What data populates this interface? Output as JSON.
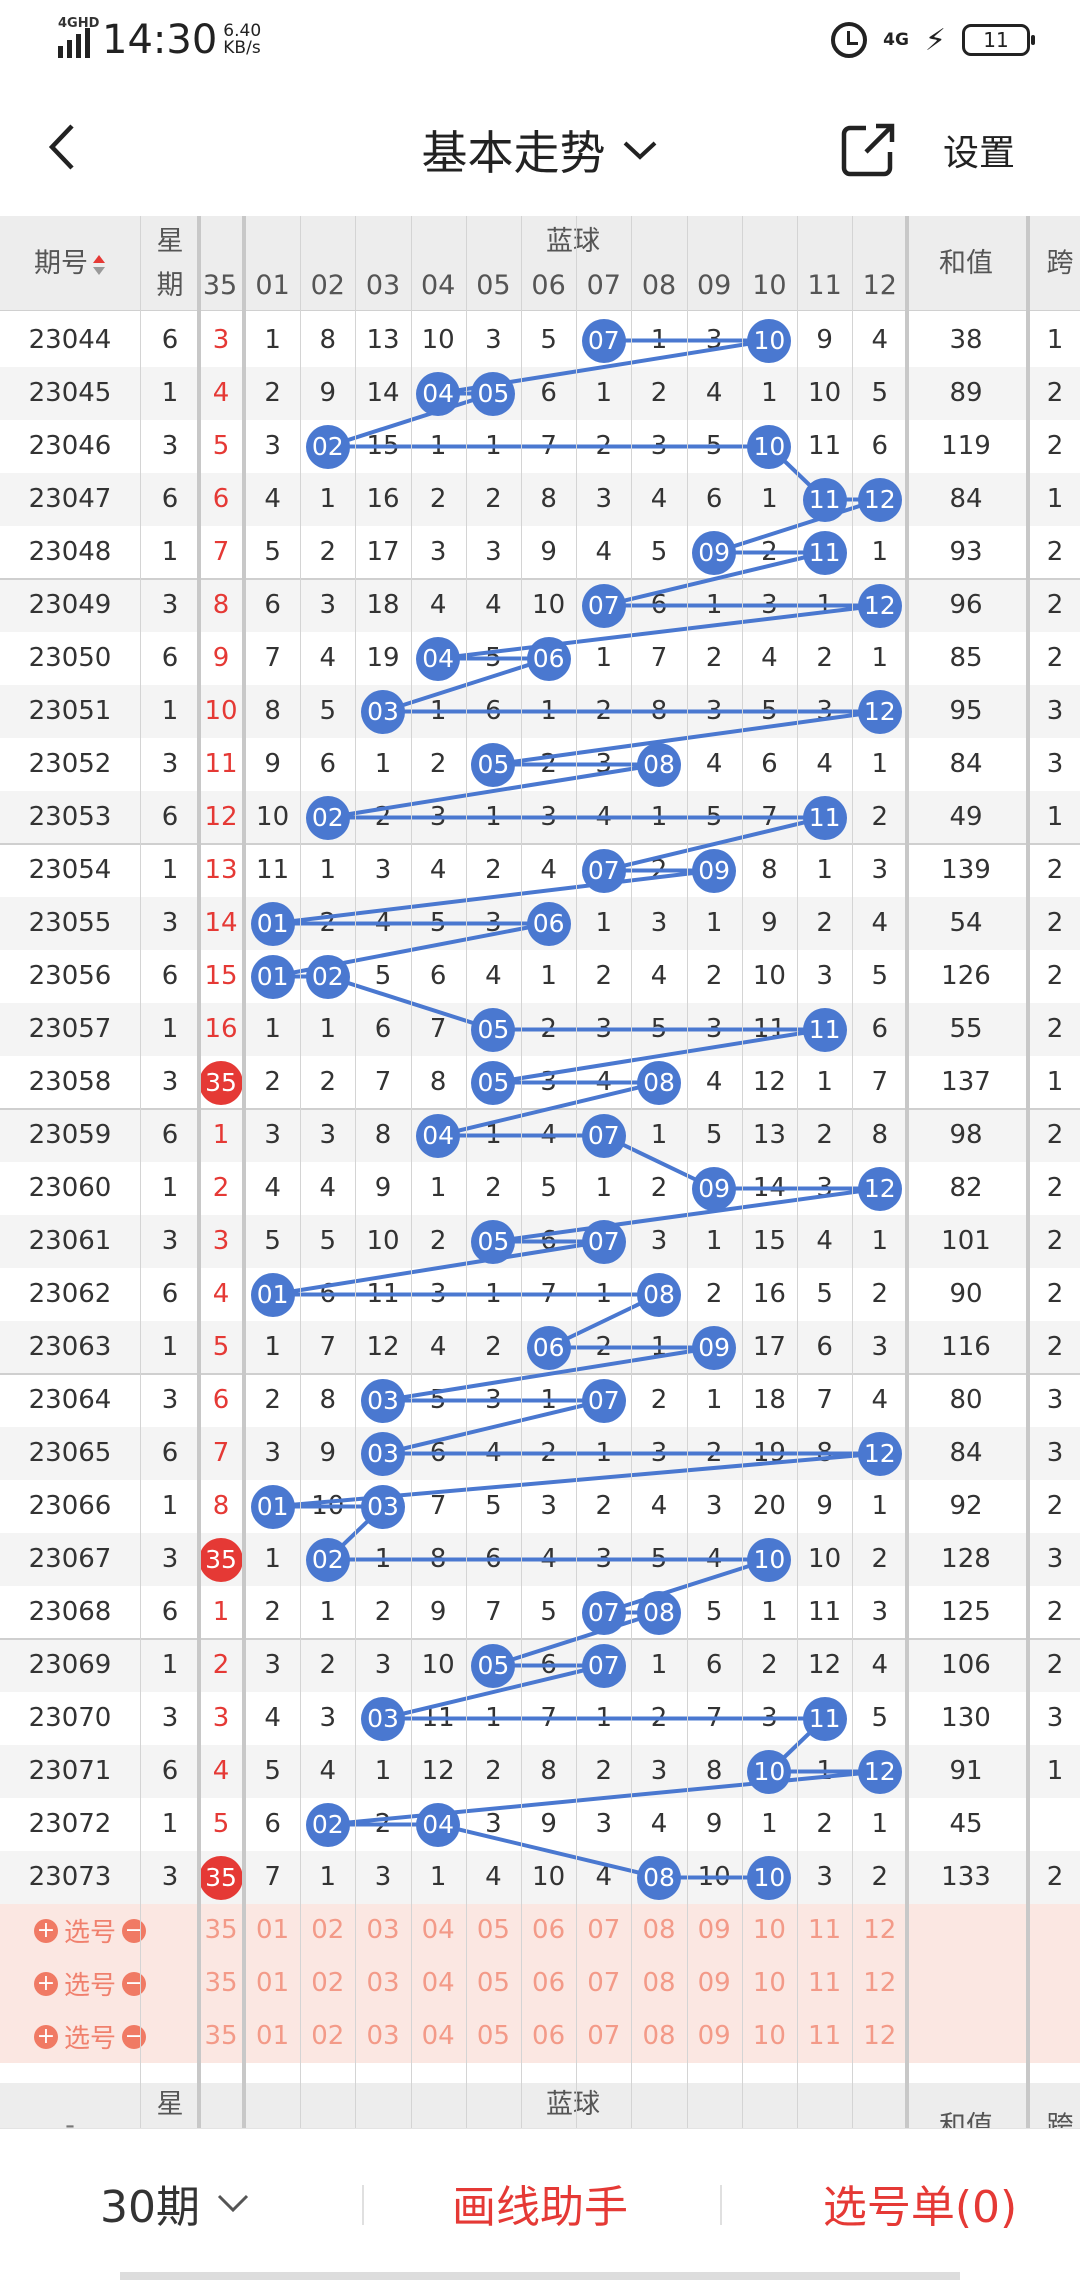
{
  "status": {
    "network_label": "4GHD",
    "time": "14:30",
    "speed_value": "6.40",
    "speed_unit": "KB/s",
    "net_type": "4G",
    "battery": "11"
  },
  "nav": {
    "title": "基本走势",
    "settings": "设置"
  },
  "table_header": {
    "issue": "期号",
    "weekday_top": "星",
    "weekday_bottom": "期",
    "red_col": "35",
    "blue_title": "蓝球",
    "sum": "和值",
    "span": "跨",
    "blue_cols": [
      "01",
      "02",
      "03",
      "04",
      "05",
      "06",
      "07",
      "08",
      "09",
      "10",
      "11",
      "12"
    ]
  },
  "rows": [
    {
      "issue": "23044",
      "wd": "6",
      "red": "3",
      "vals": [
        "1",
        "8",
        "13",
        "10",
        "3",
        "5",
        "07",
        "1",
        "3",
        "10",
        "9",
        "4"
      ],
      "sum": "38",
      "span": "1"
    },
    {
      "issue": "23045",
      "wd": "1",
      "red": "4",
      "vals": [
        "2",
        "9",
        "14",
        "04",
        "05",
        "6",
        "1",
        "2",
        "4",
        "1",
        "10",
        "5"
      ],
      "sum": "89",
      "span": "2"
    },
    {
      "issue": "23046",
      "wd": "3",
      "red": "5",
      "vals": [
        "3",
        "02",
        "15",
        "1",
        "1",
        "7",
        "2",
        "3",
        "5",
        "10",
        "11",
        "6"
      ],
      "sum": "119",
      "span": "2"
    },
    {
      "issue": "23047",
      "wd": "6",
      "red": "6",
      "vals": [
        "4",
        "1",
        "16",
        "2",
        "2",
        "8",
        "3",
        "4",
        "6",
        "1",
        "11",
        "12"
      ],
      "sum": "84",
      "span": "1"
    },
    {
      "issue": "23048",
      "wd": "1",
      "red": "7",
      "vals": [
        "5",
        "2",
        "17",
        "3",
        "3",
        "9",
        "4",
        "5",
        "09",
        "2",
        "11",
        "1"
      ],
      "sum": "93",
      "span": "2"
    },
    {
      "issue": "23049",
      "wd": "3",
      "red": "8",
      "vals": [
        "6",
        "3",
        "18",
        "4",
        "4",
        "10",
        "07",
        "6",
        "1",
        "3",
        "1",
        "12"
      ],
      "sum": "96",
      "span": "2"
    },
    {
      "issue": "23050",
      "wd": "6",
      "red": "9",
      "vals": [
        "7",
        "4",
        "19",
        "04",
        "5",
        "06",
        "1",
        "7",
        "2",
        "4",
        "2",
        "1"
      ],
      "sum": "85",
      "span": "2"
    },
    {
      "issue": "23051",
      "wd": "1",
      "red": "10",
      "vals": [
        "8",
        "5",
        "03",
        "1",
        "6",
        "1",
        "2",
        "8",
        "3",
        "5",
        "3",
        "12"
      ],
      "sum": "95",
      "span": "3"
    },
    {
      "issue": "23052",
      "wd": "3",
      "red": "11",
      "vals": [
        "9",
        "6",
        "1",
        "2",
        "05",
        "2",
        "3",
        "08",
        "4",
        "6",
        "4",
        "1"
      ],
      "sum": "84",
      "span": "3"
    },
    {
      "issue": "23053",
      "wd": "6",
      "red": "12",
      "vals": [
        "10",
        "02",
        "2",
        "3",
        "1",
        "3",
        "4",
        "1",
        "5",
        "7",
        "11",
        "2"
      ],
      "sum": "49",
      "span": "1"
    },
    {
      "issue": "23054",
      "wd": "1",
      "red": "13",
      "vals": [
        "11",
        "1",
        "3",
        "4",
        "2",
        "4",
        "07",
        "2",
        "09",
        "8",
        "1",
        "3"
      ],
      "sum": "139",
      "span": "2"
    },
    {
      "issue": "23055",
      "wd": "3",
      "red": "14",
      "vals": [
        "01",
        "2",
        "4",
        "5",
        "3",
        "06",
        "1",
        "3",
        "1",
        "9",
        "2",
        "4"
      ],
      "sum": "54",
      "span": "2"
    },
    {
      "issue": "23056",
      "wd": "6",
      "red": "15",
      "vals": [
        "01",
        "02",
        "5",
        "6",
        "4",
        "1",
        "2",
        "4",
        "2",
        "10",
        "3",
        "5"
      ],
      "sum": "126",
      "span": "2"
    },
    {
      "issue": "23057",
      "wd": "1",
      "red": "16",
      "vals": [
        "1",
        "1",
        "6",
        "7",
        "05",
        "2",
        "3",
        "5",
        "3",
        "11",
        "11",
        "6"
      ],
      "sum": "55",
      "span": "2"
    },
    {
      "issue": "23058",
      "wd": "3",
      "red": "35",
      "vals": [
        "2",
        "2",
        "7",
        "8",
        "05",
        "3",
        "4",
        "08",
        "4",
        "12",
        "1",
        "7"
      ],
      "sum": "137",
      "span": "1"
    },
    {
      "issue": "23059",
      "wd": "6",
      "red": "1",
      "vals": [
        "3",
        "3",
        "8",
        "04",
        "1",
        "4",
        "07",
        "1",
        "5",
        "13",
        "2",
        "8"
      ],
      "sum": "98",
      "span": "2"
    },
    {
      "issue": "23060",
      "wd": "1",
      "red": "2",
      "vals": [
        "4",
        "4",
        "9",
        "1",
        "2",
        "5",
        "1",
        "2",
        "09",
        "14",
        "3",
        "12"
      ],
      "sum": "82",
      "span": "2"
    },
    {
      "issue": "23061",
      "wd": "3",
      "red": "3",
      "vals": [
        "5",
        "5",
        "10",
        "2",
        "05",
        "6",
        "07",
        "3",
        "1",
        "15",
        "4",
        "1"
      ],
      "sum": "101",
      "span": "2"
    },
    {
      "issue": "23062",
      "wd": "6",
      "red": "4",
      "vals": [
        "01",
        "6",
        "11",
        "3",
        "1",
        "7",
        "1",
        "08",
        "2",
        "16",
        "5",
        "2"
      ],
      "sum": "90",
      "span": "2"
    },
    {
      "issue": "23063",
      "wd": "1",
      "red": "5",
      "vals": [
        "1",
        "7",
        "12",
        "4",
        "2",
        "06",
        "2",
        "1",
        "09",
        "17",
        "6",
        "3"
      ],
      "sum": "116",
      "span": "2"
    },
    {
      "issue": "23064",
      "wd": "3",
      "red": "6",
      "vals": [
        "2",
        "8",
        "03",
        "5",
        "3",
        "1",
        "07",
        "2",
        "1",
        "18",
        "7",
        "4"
      ],
      "sum": "80",
      "span": "3"
    },
    {
      "issue": "23065",
      "wd": "6",
      "red": "7",
      "vals": [
        "3",
        "9",
        "03",
        "6",
        "4",
        "2",
        "1",
        "3",
        "2",
        "19",
        "8",
        "12"
      ],
      "sum": "84",
      "span": "3"
    },
    {
      "issue": "23066",
      "wd": "1",
      "red": "8",
      "vals": [
        "01",
        "10",
        "03",
        "7",
        "5",
        "3",
        "2",
        "4",
        "3",
        "20",
        "9",
        "1"
      ],
      "sum": "92",
      "span": "2"
    },
    {
      "issue": "23067",
      "wd": "3",
      "red": "35",
      "vals": [
        "1",
        "02",
        "1",
        "8",
        "6",
        "4",
        "3",
        "5",
        "4",
        "10",
        "10",
        "2"
      ],
      "sum": "128",
      "span": "3"
    },
    {
      "issue": "23068",
      "wd": "6",
      "red": "1",
      "vals": [
        "2",
        "1",
        "2",
        "9",
        "7",
        "5",
        "07",
        "08",
        "5",
        "1",
        "11",
        "3"
      ],
      "sum": "125",
      "span": "2"
    },
    {
      "issue": "23069",
      "wd": "1",
      "red": "2",
      "vals": [
        "3",
        "2",
        "3",
        "10",
        "05",
        "6",
        "07",
        "1",
        "6",
        "2",
        "12",
        "4"
      ],
      "sum": "106",
      "span": "2"
    },
    {
      "issue": "23070",
      "wd": "3",
      "red": "3",
      "vals": [
        "4",
        "3",
        "03",
        "11",
        "1",
        "7",
        "1",
        "2",
        "7",
        "3",
        "11",
        "5"
      ],
      "sum": "130",
      "span": "3"
    },
    {
      "issue": "23071",
      "wd": "6",
      "red": "4",
      "vals": [
        "5",
        "4",
        "1",
        "12",
        "2",
        "8",
        "2",
        "3",
        "8",
        "10",
        "1",
        "12"
      ],
      "sum": "91",
      "span": "1"
    },
    {
      "issue": "23072",
      "wd": "1",
      "red": "5",
      "vals": [
        "6",
        "02",
        "2",
        "04",
        "3",
        "9",
        "3",
        "4",
        "9",
        "1",
        "2",
        "1"
      ],
      "sum": "45",
      "span": ""
    },
    {
      "issue": "23073",
      "wd": "3",
      "red": "35",
      "vals": [
        "7",
        "1",
        "3",
        "1",
        "4",
        "10",
        "4",
        "08",
        "10",
        "10",
        "3",
        "2"
      ],
      "sum": "133",
      "span": "2"
    }
  ],
  "balls": [
    [
      7,
      10
    ],
    [
      4,
      5
    ],
    [
      2,
      10
    ],
    [
      11,
      12
    ],
    [
      9,
      11
    ],
    [
      7,
      12
    ],
    [
      4,
      6
    ],
    [
      3,
      12
    ],
    [
      5,
      8
    ],
    [
      2,
      11
    ],
    [
      7,
      9
    ],
    [
      1,
      6
    ],
    [
      1,
      2
    ],
    [
      5,
      11
    ],
    [
      5,
      8
    ],
    [
      4,
      7
    ],
    [
      9,
      12
    ],
    [
      5,
      7
    ],
    [
      1,
      8
    ],
    [
      6,
      9
    ],
    [
      3,
      7
    ],
    [
      3,
      12
    ],
    [
      1,
      3
    ],
    [
      2,
      10
    ],
    [
      7,
      8
    ],
    [
      5,
      7
    ],
    [
      3,
      11
    ],
    [
      10,
      12
    ],
    [
      2,
      4
    ],
    [
      8,
      10
    ]
  ],
  "red_ball_rows": [
    14,
    23,
    29
  ],
  "pick_rows": [
    {
      "label": "选号",
      "plus": "+",
      "minus": "−"
    },
    {
      "label": "选号",
      "plus": "+",
      "minus": "−"
    },
    {
      "label": "选号",
      "plus": "+",
      "minus": "−"
    }
  ],
  "bottom": {
    "period": "30期",
    "draw_helper": "画线助手",
    "cart": "选号单(0)"
  },
  "colors": {
    "accent": "#e53935",
    "ball_blue": "#4a78d0",
    "pick_bg": "#fbe7e2"
  }
}
